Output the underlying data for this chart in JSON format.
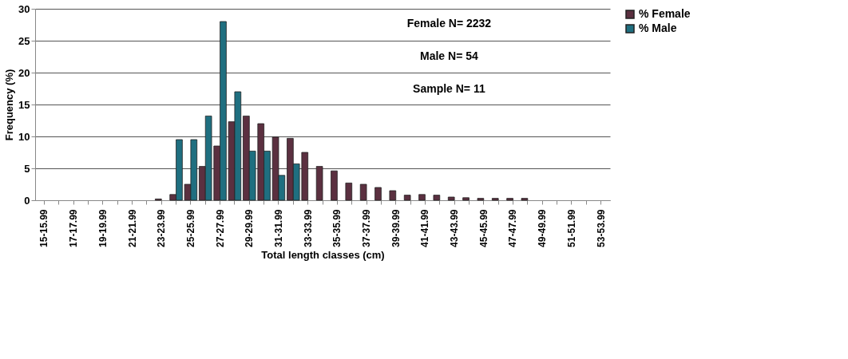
{
  "chart_data": {
    "type": "bar",
    "xlabel": "Total length classes (cm)",
    "ylabel": "Frequency (%)",
    "categories": [
      "15-15.99",
      null,
      "17-17.99",
      null,
      "19-19.99",
      null,
      "21-21.99",
      null,
      "23-23.99",
      null,
      "25-25.99",
      null,
      "27-27.99",
      null,
      "29-29.99",
      null,
      "31-31.99",
      null,
      "33-33.99",
      null,
      "35-35.99",
      null,
      "37-37.99",
      null,
      "39-39.99",
      null,
      "41-41.99",
      null,
      "43-43.99",
      null,
      "45-45.99",
      null,
      "47-47.99",
      null,
      "49-49.99",
      null,
      "51-51.99",
      null,
      "53-53.99"
    ],
    "series": [
      {
        "name": "% Female",
        "color": "#5b3040",
        "values": [
          null,
          null,
          null,
          null,
          null,
          null,
          null,
          null,
          0.2,
          0.9,
          2.5,
          5.3,
          8.5,
          12.3,
          13.2,
          12,
          9.9,
          9.7,
          7.5,
          5.3,
          4.6,
          2.7,
          2.5,
          2,
          1.5,
          0.8,
          0.9,
          0.8,
          0.5,
          0.4,
          0.3,
          0.3,
          0.3,
          0.3,
          null,
          null,
          null,
          null,
          null
        ]
      },
      {
        "name": "% Male",
        "color": "#1f6f80",
        "values": [
          null,
          null,
          null,
          null,
          null,
          null,
          null,
          null,
          null,
          9.5,
          9.5,
          13.2,
          28,
          17,
          7.7,
          7.7,
          3.9,
          5.7,
          null,
          null,
          null,
          null,
          null,
          null,
          null,
          null,
          null,
          null,
          null,
          null,
          null,
          null,
          null,
          null,
          null,
          null,
          null,
          null,
          null
        ]
      }
    ],
    "ylim": [
      0,
      30
    ],
    "yticks": [
      0,
      5,
      10,
      15,
      20,
      25,
      30
    ],
    "grid": "y",
    "legend": "right",
    "annotations": [
      "Female N= 2232",
      "Male N= 54",
      "Sample N= 11"
    ]
  }
}
